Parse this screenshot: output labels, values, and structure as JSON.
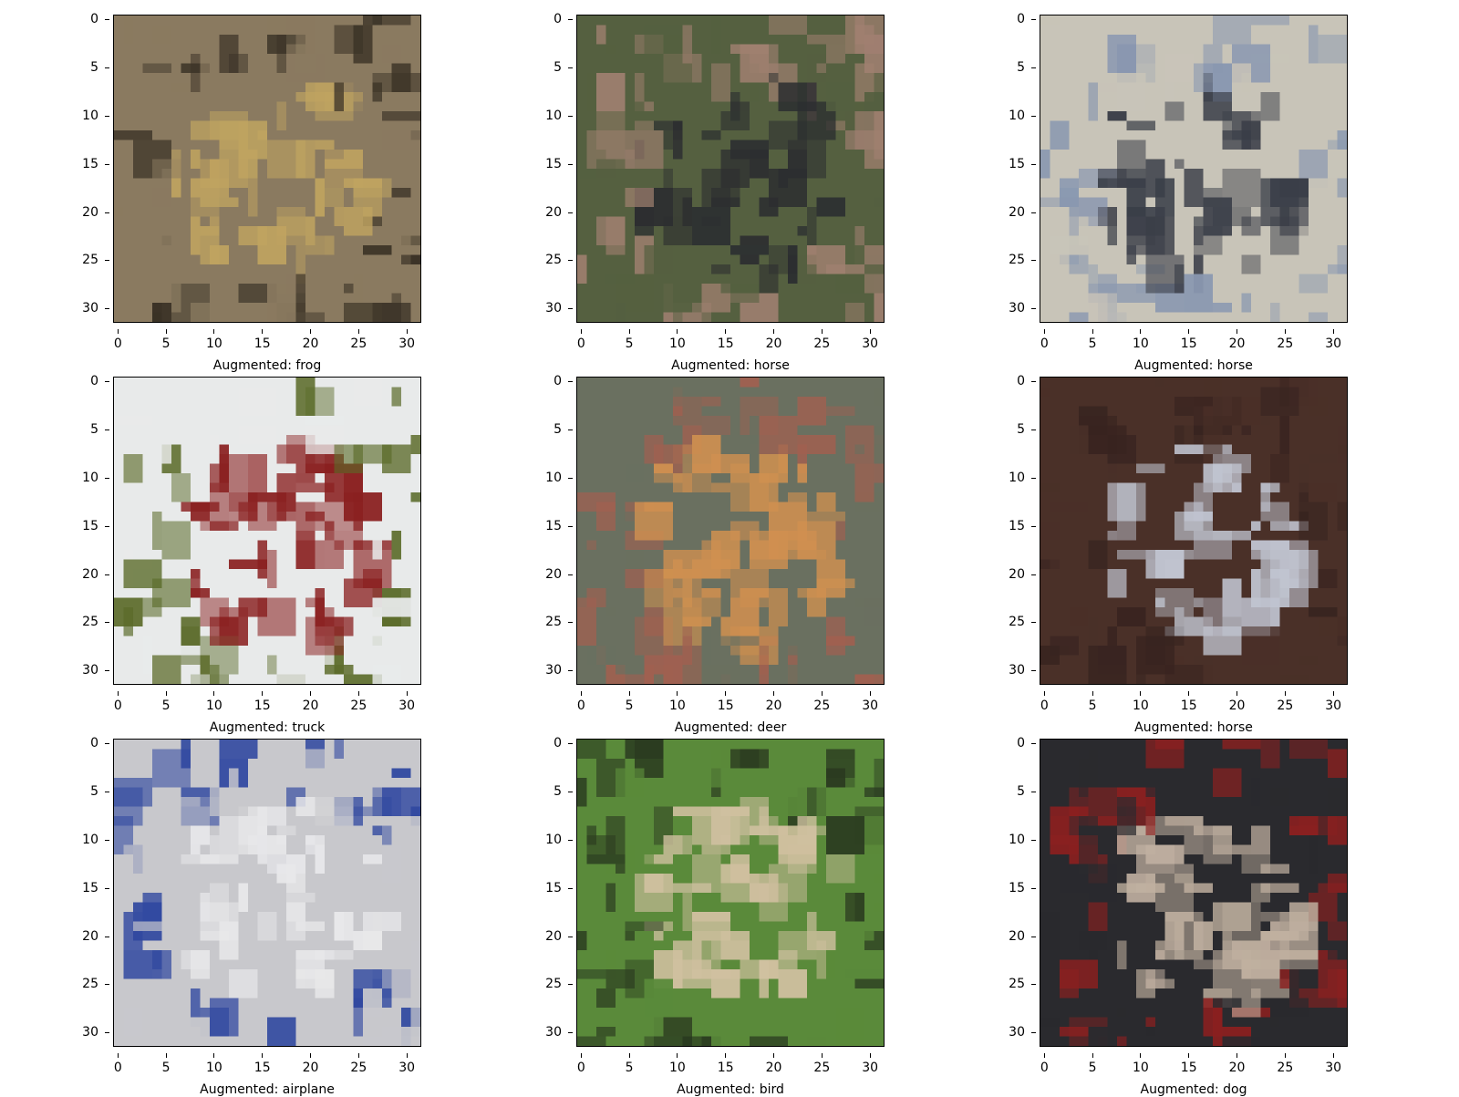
{
  "ticks": [
    "0",
    "5",
    "10",
    "15",
    "20",
    "25",
    "30"
  ],
  "panels": [
    {
      "caption": "Augmented: frog",
      "icon": "frog-photo-icon",
      "bg": "#8a7a60",
      "c1": "#c0a460",
      "c2": "#3a3226"
    },
    {
      "caption": "Augmented: horse",
      "icon": "horse-photo-icon",
      "bg": "#556040",
      "c1": "#2c2e30",
      "c2": "#a08070"
    },
    {
      "caption": "Augmented: horse",
      "icon": "horse-photo-icon",
      "bg": "#c8c4b8",
      "c1": "#3a3e48",
      "c2": "#8a98b0"
    },
    {
      "caption": "Augmented: truck",
      "icon": "truck-photo-icon",
      "bg": "#e8eaea",
      "c1": "#8a2020",
      "c2": "#5a6a28"
    },
    {
      "caption": "Augmented: deer",
      "icon": "deer-photo-icon",
      "bg": "#6a7060",
      "c1": "#d09050",
      "c2": "#a06050"
    },
    {
      "caption": "Augmented: horse",
      "icon": "horse-photo-icon",
      "bg": "#4a3028",
      "c1": "#c0c4d0",
      "c2": "#382420"
    },
    {
      "caption": "Augmented: airplane",
      "icon": "airplane-photo-icon",
      "bg": "#c8c8cc",
      "c1": "#e8e8ea",
      "c2": "#3048a0"
    },
    {
      "caption": "Augmented: bird",
      "icon": "bird-photo-icon",
      "bg": "#5a8a3a",
      "c1": "#d0c0a0",
      "c2": "#2a3a20"
    },
    {
      "caption": "Augmented: dog",
      "icon": "dog-photo-icon",
      "bg": "#2a2a2e",
      "c1": "#c0b0a0",
      "c2": "#8a2020"
    }
  ]
}
